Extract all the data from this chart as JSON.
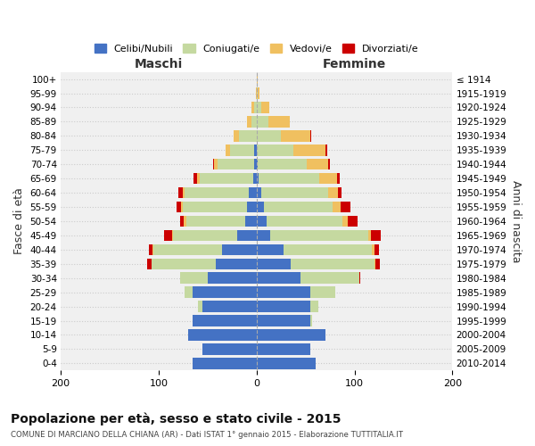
{
  "age_groups": [
    "0-4",
    "5-9",
    "10-14",
    "15-19",
    "20-24",
    "25-29",
    "30-34",
    "35-39",
    "40-44",
    "45-49",
    "50-54",
    "55-59",
    "60-64",
    "65-69",
    "70-74",
    "75-79",
    "80-84",
    "85-89",
    "90-94",
    "95-99",
    "100+"
  ],
  "birth_years": [
    "2010-2014",
    "2005-2009",
    "2000-2004",
    "1995-1999",
    "1990-1994",
    "1985-1989",
    "1980-1984",
    "1975-1979",
    "1970-1974",
    "1965-1969",
    "1960-1964",
    "1955-1959",
    "1950-1954",
    "1945-1949",
    "1940-1944",
    "1935-1939",
    "1930-1934",
    "1925-1929",
    "1920-1924",
    "1915-1919",
    "≤ 1914"
  ],
  "colors": {
    "celibe": "#4472c4",
    "coniugato": "#c5d9a0",
    "vedovo": "#f0c060",
    "divorziato": "#cc0000"
  },
  "maschi": {
    "celibe": [
      65,
      55,
      70,
      65,
      55,
      65,
      50,
      42,
      35,
      20,
      12,
      10,
      8,
      3,
      2,
      2,
      0,
      0,
      0,
      0,
      0
    ],
    "coniugato": [
      0,
      0,
      0,
      0,
      5,
      8,
      28,
      65,
      70,
      65,
      60,
      65,
      65,
      55,
      38,
      25,
      18,
      5,
      2,
      0,
      0
    ],
    "vedovo": [
      0,
      0,
      0,
      0,
      0,
      0,
      0,
      0,
      1,
      1,
      2,
      2,
      2,
      3,
      3,
      5,
      5,
      5,
      3,
      1,
      0
    ],
    "divorziato": [
      0,
      0,
      0,
      0,
      0,
      0,
      0,
      5,
      4,
      8,
      4,
      5,
      5,
      3,
      1,
      0,
      0,
      0,
      0,
      0,
      0
    ]
  },
  "femmine": {
    "nubile": [
      60,
      55,
      70,
      55,
      55,
      55,
      45,
      35,
      28,
      14,
      10,
      8,
      5,
      2,
      1,
      0,
      0,
      0,
      0,
      0,
      0
    ],
    "coniugata": [
      0,
      0,
      0,
      2,
      8,
      25,
      60,
      85,
      90,
      100,
      78,
      70,
      68,
      62,
      50,
      38,
      25,
      12,
      5,
      1,
      0
    ],
    "vedova": [
      0,
      0,
      0,
      0,
      0,
      0,
      0,
      1,
      2,
      3,
      5,
      8,
      10,
      18,
      22,
      32,
      30,
      22,
      8,
      2,
      1
    ],
    "divorziata": [
      0,
      0,
      0,
      0,
      0,
      0,
      1,
      5,
      5,
      10,
      10,
      10,
      4,
      3,
      2,
      2,
      1,
      0,
      0,
      0,
      0
    ]
  },
  "xlim": 200,
  "title": "Popolazione per età, sesso e stato civile - 2015",
  "subtitle": "COMUNE DI MARCIANO DELLA CHIANA (AR) - Dati ISTAT 1° gennaio 2015 - Elaborazione TUTTITALIA.IT",
  "xlabel_left": "Maschi",
  "xlabel_right": "Femmine",
  "ylabel": "Fasce di età",
  "ylabel_right": "Anni di nascita",
  "background_color": "#ffffff",
  "grid_color": "#cccccc",
  "legend_labels": [
    "Celibi/Nubili",
    "Coniugati/e",
    "Vedovi/e",
    "Divorziati/e"
  ]
}
